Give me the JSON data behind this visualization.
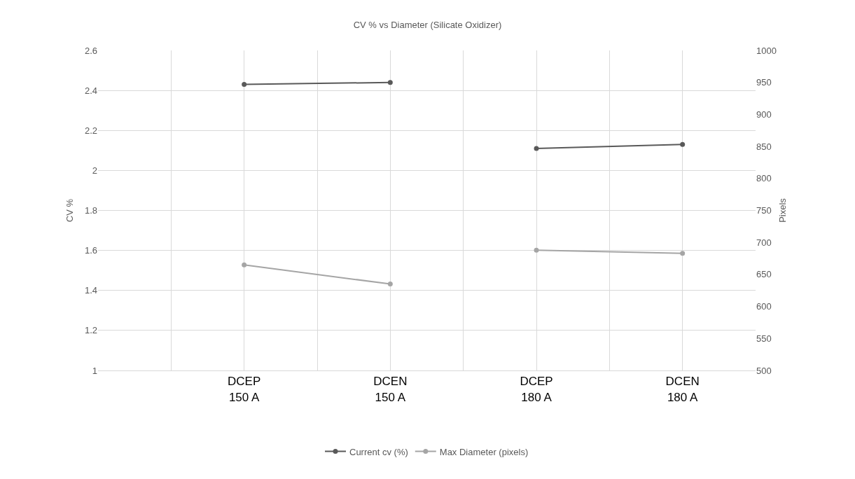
{
  "chart_data": {
    "type": "line",
    "title": "CV % vs Diameter (Silicate Oxidizer)",
    "ylabel": "CV %",
    "y2label": "Pixels",
    "categories": [
      "DCEP\n150 A",
      "DCEN\n150 A",
      "DCEP\n180 A",
      "DCEN\n180 A"
    ],
    "series": [
      {
        "name": "Current cv (%)",
        "color": "#595959",
        "values": [
          2.43,
          2.44,
          null,
          null
        ]
      },
      {
        "color": "#595959",
        "values": [
          null,
          null,
          2.11,
          2.13
        ]
      },
      {
        "name": "Max Diameter (pixels)",
        "color": "#a5a5a5",
        "axis": "y2",
        "values": [
          665,
          635,
          null,
          null
        ]
      },
      {
        "color": "#a5a5a5",
        "axis": "y2",
        "values": [
          null,
          null,
          688,
          683
        ]
      }
    ],
    "ylim": [
      1,
      2.6
    ],
    "yticks": [
      1,
      1.2,
      1.4,
      1.6,
      1.8,
      2,
      2.2,
      2.4,
      2.6
    ],
    "y2lim": [
      500,
      1000
    ],
    "y2ticks": [
      500,
      550,
      600,
      650,
      700,
      750,
      800,
      850,
      900,
      950,
      1000
    ],
    "grid": true,
    "legend": "bottom",
    "marker": "circle",
    "line_style": "solid"
  }
}
